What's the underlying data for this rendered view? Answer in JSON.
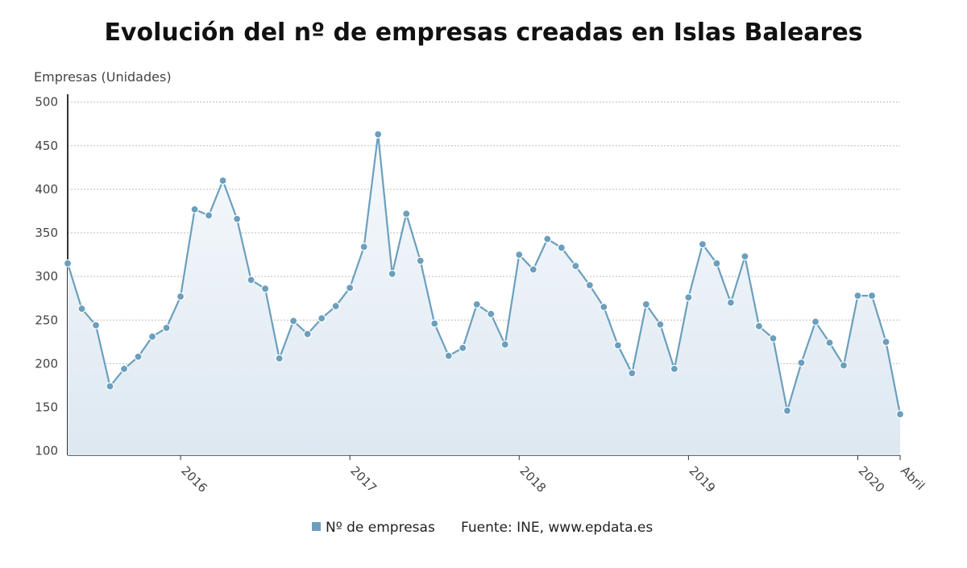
{
  "chart_data": {
    "type": "line",
    "title": "Evolución del nº de empresas creadas en Islas Baleares",
    "y_label": "Empresas (Unidades)",
    "source": "Fuente: INE, www.epdata.es",
    "categories": [
      null,
      null,
      null,
      null,
      null,
      null,
      null,
      null,
      "2016",
      null,
      null,
      null,
      null,
      null,
      null,
      null,
      null,
      null,
      null,
      null,
      "2017",
      null,
      null,
      null,
      null,
      null,
      null,
      null,
      null,
      null,
      null,
      null,
      "2018",
      null,
      null,
      null,
      null,
      null,
      null,
      null,
      null,
      null,
      null,
      null,
      "2019",
      null,
      null,
      null,
      null,
      null,
      null,
      null,
      null,
      null,
      null,
      null,
      "2020",
      null,
      null,
      "Abril"
    ],
    "series": [
      {
        "name": "Nº de empresas",
        "color": "#6b9fbd",
        "values": [
          315,
          263,
          244,
          174,
          194,
          208,
          231,
          241,
          277,
          377,
          370,
          410,
          366,
          296,
          286,
          206,
          249,
          234,
          252,
          266,
          287,
          334,
          463,
          303,
          372,
          318,
          246,
          209,
          218,
          268,
          257,
          222,
          325,
          308,
          343,
          333,
          312,
          290,
          265,
          221,
          189,
          268,
          245,
          194,
          276,
          337,
          315,
          270,
          323,
          243,
          229,
          146,
          201,
          248,
          224,
          198,
          278,
          278,
          225,
          142
        ]
      }
    ],
    "ylim": [
      95,
      509
    ],
    "yticks": [
      100,
      150,
      200,
      250,
      300,
      350,
      400,
      450,
      500
    ],
    "grid": true
  }
}
